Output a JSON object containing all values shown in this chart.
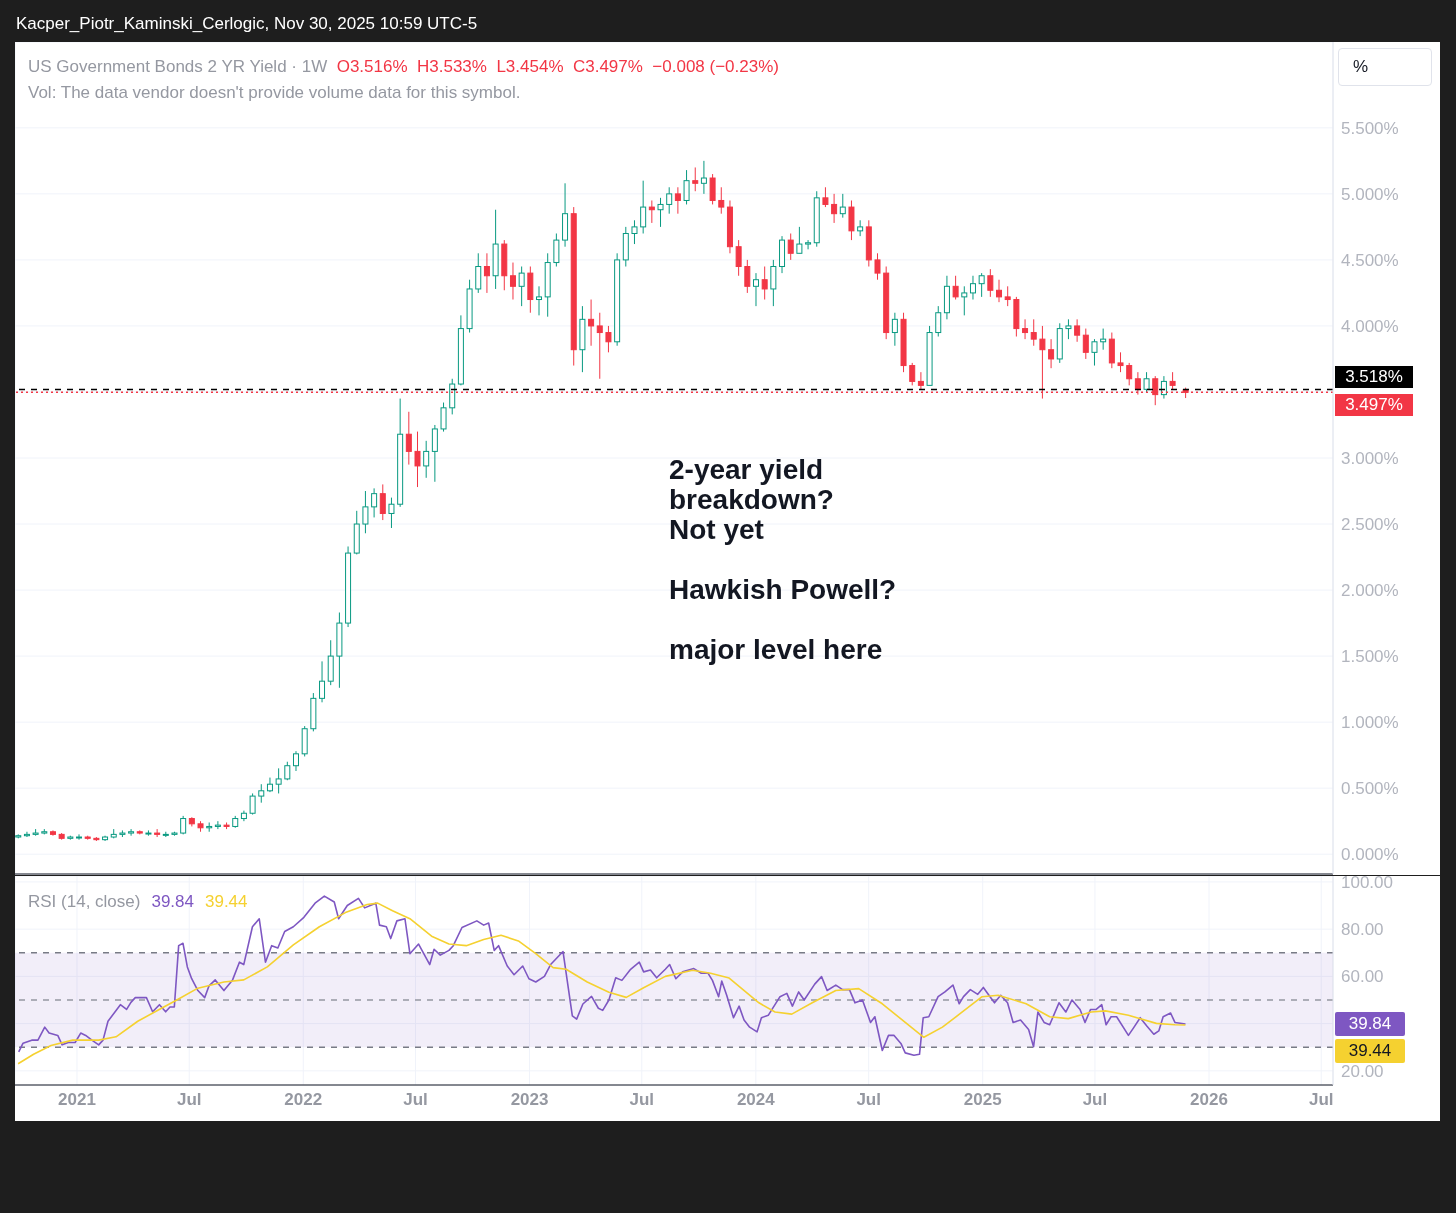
{
  "chart_data": [
    {
      "type": "candlestick",
      "title": "US Government Bonds 2 YR Yield · 1W",
      "subtitle": "Vol: The data vendor doesn't provide volume data for this symbol.",
      "annotations": [
        "O3.516%  H3.533%  L3.454%  C3.497%  −0.008 (−0.23%)",
        "2-year yield\nbreakdown?\nNot yet\n\nHawkish Powell?\n\nmajor level here",
        "%",
        "Kacper_Piotr_Kaminski_Cerlogic, Nov 30, 2025 10:59 UTC-5"
      ],
      "x": [
        "2020-09-28",
        "2020-10-12",
        "2020-10-26",
        "2020-11-09",
        "2020-11-23",
        "2020-12-07",
        "2020-12-21",
        "2021-01-04",
        "2021-01-18",
        "2021-02-01",
        "2021-02-15",
        "2021-03-01",
        "2021-03-15",
        "2021-03-29",
        "2021-04-12",
        "2021-04-26",
        "2021-05-10",
        "2021-05-24",
        "2021-06-07",
        "2021-06-21",
        "2021-07-05",
        "2021-07-19",
        "2021-08-02",
        "2021-08-16",
        "2021-08-30",
        "2021-09-13",
        "2021-09-27",
        "2021-10-11",
        "2021-10-25",
        "2021-11-08",
        "2021-11-22",
        "2021-12-06",
        "2021-12-20",
        "2022-01-03",
        "2022-01-17",
        "2022-01-31",
        "2022-02-14",
        "2022-02-28",
        "2022-03-14",
        "2022-03-28",
        "2022-04-11",
        "2022-04-25",
        "2022-05-09",
        "2022-05-23",
        "2022-06-06",
        "2022-06-20",
        "2022-07-04",
        "2022-07-18",
        "2022-08-01",
        "2022-08-15",
        "2022-08-29",
        "2022-09-12",
        "2022-09-26",
        "2022-10-10",
        "2022-10-24",
        "2022-11-07",
        "2022-11-21",
        "2022-12-05",
        "2022-12-19",
        "2023-01-02",
        "2023-01-16",
        "2023-01-30",
        "2023-02-13",
        "2023-02-27",
        "2023-03-13",
        "2023-03-27",
        "2023-04-10",
        "2023-04-24",
        "2023-05-08",
        "2023-05-22",
        "2023-06-05",
        "2023-06-19",
        "2023-07-03",
        "2023-07-17",
        "2023-07-31",
        "2023-08-14",
        "2023-08-28",
        "2023-09-11",
        "2023-09-25",
        "2023-10-09",
        "2023-10-23",
        "2023-11-06",
        "2023-11-20",
        "2023-12-04",
        "2023-12-18",
        "2024-01-01",
        "2024-01-15",
        "2024-01-29",
        "2024-02-12",
        "2024-02-26",
        "2024-03-11",
        "2024-03-25",
        "2024-04-08",
        "2024-04-22",
        "2024-05-06",
        "2024-05-20",
        "2024-06-03",
        "2024-06-17",
        "2024-07-01",
        "2024-07-15",
        "2024-07-29",
        "2024-08-12",
        "2024-08-26",
        "2024-09-09",
        "2024-09-23",
        "2024-10-07",
        "2024-10-21",
        "2024-11-04",
        "2024-11-18",
        "2024-12-02",
        "2024-12-16",
        "2024-12-30",
        "2025-01-13",
        "2025-01-27",
        "2025-02-10",
        "2025-02-24",
        "2025-03-10",
        "2025-03-24",
        "2025-04-07",
        "2025-04-21",
        "2025-05-05",
        "2025-05-19",
        "2025-06-02",
        "2025-06-16",
        "2025-06-30",
        "2025-07-14",
        "2025-07-28",
        "2025-08-11",
        "2025-08-25",
        "2025-09-08",
        "2025-09-22",
        "2025-10-06",
        "2025-10-20",
        "2025-11-03",
        "2025-11-24"
      ],
      "ohlc": [
        [
          0.13,
          0.15,
          0.12,
          0.14
        ],
        [
          0.14,
          0.17,
          0.13,
          0.15
        ],
        [
          0.15,
          0.19,
          0.14,
          0.16
        ],
        [
          0.16,
          0.19,
          0.15,
          0.17
        ],
        [
          0.17,
          0.18,
          0.14,
          0.15
        ],
        [
          0.15,
          0.16,
          0.11,
          0.12
        ],
        [
          0.12,
          0.14,
          0.11,
          0.13
        ],
        [
          0.13,
          0.15,
          0.11,
          0.13
        ],
        [
          0.13,
          0.14,
          0.11,
          0.12
        ],
        [
          0.12,
          0.13,
          0.1,
          0.11
        ],
        [
          0.11,
          0.14,
          0.1,
          0.13
        ],
        [
          0.13,
          0.19,
          0.12,
          0.15
        ],
        [
          0.15,
          0.18,
          0.13,
          0.16
        ],
        [
          0.16,
          0.19,
          0.14,
          0.17
        ],
        [
          0.17,
          0.18,
          0.15,
          0.16
        ],
        [
          0.16,
          0.18,
          0.14,
          0.16
        ],
        [
          0.16,
          0.19,
          0.13,
          0.15
        ],
        [
          0.15,
          0.17,
          0.13,
          0.15
        ],
        [
          0.15,
          0.17,
          0.14,
          0.16
        ],
        [
          0.16,
          0.29,
          0.15,
          0.27
        ],
        [
          0.27,
          0.28,
          0.21,
          0.23
        ],
        [
          0.23,
          0.25,
          0.17,
          0.2
        ],
        [
          0.2,
          0.24,
          0.17,
          0.21
        ],
        [
          0.21,
          0.25,
          0.19,
          0.22
        ],
        [
          0.22,
          0.24,
          0.19,
          0.21
        ],
        [
          0.21,
          0.29,
          0.2,
          0.27
        ],
        [
          0.27,
          0.33,
          0.25,
          0.31
        ],
        [
          0.31,
          0.46,
          0.3,
          0.44
        ],
        [
          0.44,
          0.53,
          0.39,
          0.48
        ],
        [
          0.48,
          0.58,
          0.47,
          0.53
        ],
        [
          0.53,
          0.65,
          0.46,
          0.57
        ],
        [
          0.57,
          0.7,
          0.56,
          0.67
        ],
        [
          0.67,
          0.78,
          0.63,
          0.76
        ],
        [
          0.76,
          0.97,
          0.74,
          0.95
        ],
        [
          0.95,
          1.22,
          0.93,
          1.18
        ],
        [
          1.18,
          1.46,
          1.15,
          1.31
        ],
        [
          1.31,
          1.62,
          1.28,
          1.5
        ],
        [
          1.5,
          1.83,
          1.26,
          1.75
        ],
        [
          1.75,
          2.33,
          1.72,
          2.28
        ],
        [
          2.28,
          2.6,
          2.27,
          2.5
        ],
        [
          2.5,
          2.75,
          2.43,
          2.63
        ],
        [
          2.63,
          2.77,
          2.55,
          2.73
        ],
        [
          2.73,
          2.8,
          2.53,
          2.58
        ],
        [
          2.58,
          2.7,
          2.47,
          2.65
        ],
        [
          2.65,
          3.45,
          2.63,
          3.18
        ],
        [
          3.18,
          3.35,
          2.95,
          3.05
        ],
        [
          3.05,
          3.2,
          2.78,
          2.94
        ],
        [
          2.94,
          3.13,
          2.85,
          3.05
        ],
        [
          3.05,
          3.25,
          2.82,
          3.22
        ],
        [
          3.22,
          3.42,
          3.2,
          3.38
        ],
        [
          3.38,
          3.6,
          3.33,
          3.56
        ],
        [
          3.56,
          4.08,
          3.55,
          3.98
        ],
        [
          3.98,
          4.35,
          3.95,
          4.28
        ],
        [
          4.28,
          4.55,
          4.25,
          4.45
        ],
        [
          4.45,
          4.55,
          4.25,
          4.38
        ],
        [
          4.38,
          4.88,
          4.28,
          4.62
        ],
        [
          4.62,
          4.65,
          4.27,
          4.38
        ],
        [
          4.38,
          4.48,
          4.2,
          4.3
        ],
        [
          4.3,
          4.45,
          4.15,
          4.4
        ],
        [
          4.4,
          4.45,
          4.1,
          4.2
        ],
        [
          4.2,
          4.3,
          4.08,
          4.22
        ],
        [
          4.22,
          4.55,
          4.07,
          4.48
        ],
        [
          4.48,
          4.7,
          4.45,
          4.65
        ],
        [
          4.65,
          5.08,
          4.6,
          4.85
        ],
        [
          4.85,
          4.9,
          3.7,
          3.82
        ],
        [
          3.82,
          4.15,
          3.65,
          4.05
        ],
        [
          4.05,
          4.2,
          3.85,
          4.0
        ],
        [
          4.0,
          4.1,
          3.6,
          3.95
        ],
        [
          3.95,
          4.0,
          3.8,
          3.88
        ],
        [
          3.88,
          4.55,
          3.85,
          4.5
        ],
        [
          4.5,
          4.75,
          4.45,
          4.7
        ],
        [
          4.7,
          4.8,
          4.62,
          4.75
        ],
        [
          4.75,
          5.1,
          4.7,
          4.9
        ],
        [
          4.9,
          4.95,
          4.78,
          4.88
        ],
        [
          4.88,
          4.97,
          4.75,
          4.92
        ],
        [
          4.92,
          5.05,
          4.85,
          5.0
        ],
        [
          5.0,
          5.05,
          4.85,
          4.95
        ],
        [
          4.95,
          5.18,
          4.92,
          5.1
        ],
        [
          5.1,
          5.2,
          5.02,
          5.08
        ],
        [
          5.08,
          5.25,
          5.0,
          5.12
        ],
        [
          5.12,
          5.15,
          4.92,
          4.95
        ],
        [
          4.95,
          5.05,
          4.85,
          4.9
        ],
        [
          4.9,
          4.95,
          4.55,
          4.6
        ],
        [
          4.6,
          4.65,
          4.38,
          4.45
        ],
        [
          4.45,
          4.5,
          4.25,
          4.3
        ],
        [
          4.3,
          4.4,
          4.15,
          4.35
        ],
        [
          4.35,
          4.45,
          4.2,
          4.28
        ],
        [
          4.28,
          4.5,
          4.15,
          4.45
        ],
        [
          4.45,
          4.68,
          4.4,
          4.65
        ],
        [
          4.65,
          4.7,
          4.5,
          4.55
        ],
        [
          4.55,
          4.75,
          4.55,
          4.62
        ],
        [
          4.62,
          4.65,
          4.58,
          4.63
        ],
        [
          4.63,
          5.02,
          4.6,
          4.97
        ],
        [
          4.97,
          5.05,
          4.9,
          4.92
        ],
        [
          4.92,
          5.0,
          4.78,
          4.85
        ],
        [
          4.85,
          5.0,
          4.82,
          4.9
        ],
        [
          4.9,
          4.95,
          4.65,
          4.72
        ],
        [
          4.72,
          4.8,
          4.68,
          4.75
        ],
        [
          4.75,
          4.8,
          4.45,
          4.5
        ],
        [
          4.5,
          4.55,
          4.35,
          4.4
        ],
        [
          4.4,
          4.45,
          3.9,
          3.95
        ],
        [
          3.95,
          4.1,
          3.85,
          4.05
        ],
        [
          4.05,
          4.1,
          3.65,
          3.7
        ],
        [
          3.7,
          3.72,
          3.55,
          3.58
        ],
        [
          3.58,
          3.65,
          3.52,
          3.55
        ],
        [
          3.55,
          4.0,
          3.55,
          3.95
        ],
        [
          3.95,
          4.15,
          3.92,
          4.1
        ],
        [
          4.1,
          4.38,
          4.05,
          4.3
        ],
        [
          4.3,
          4.38,
          4.2,
          4.22
        ],
        [
          4.22,
          4.3,
          4.08,
          4.25
        ],
        [
          4.25,
          4.38,
          4.2,
          4.32
        ],
        [
          4.32,
          4.4,
          4.22,
          4.38
        ],
        [
          4.38,
          4.43,
          4.22,
          4.27
        ],
        [
          4.27,
          4.35,
          4.18,
          4.22
        ],
        [
          4.22,
          4.3,
          4.15,
          4.2
        ],
        [
          4.2,
          4.22,
          3.92,
          3.98
        ],
        [
          3.98,
          4.05,
          3.9,
          3.95
        ],
        [
          3.95,
          4.05,
          3.85,
          3.9
        ],
        [
          3.9,
          4.0,
          3.45,
          3.82
        ],
        [
          3.82,
          3.9,
          3.68,
          3.75
        ],
        [
          3.75,
          4.02,
          3.72,
          3.98
        ],
        [
          3.98,
          4.05,
          3.9,
          4.0
        ],
        [
          4.0,
          4.05,
          3.88,
          3.93
        ],
        [
          3.93,
          3.98,
          3.75,
          3.8
        ],
        [
          3.8,
          3.9,
          3.7,
          3.88
        ],
        [
          3.88,
          3.98,
          3.82,
          3.9
        ],
        [
          3.9,
          3.95,
          3.68,
          3.72
        ],
        [
          3.72,
          3.8,
          3.65,
          3.7
        ],
        [
          3.7,
          3.72,
          3.55,
          3.6
        ],
        [
          3.6,
          3.65,
          3.48,
          3.52
        ],
        [
          3.52,
          3.65,
          3.5,
          3.6
        ],
        [
          3.6,
          3.62,
          3.4,
          3.48
        ],
        [
          3.48,
          3.62,
          3.45,
          3.58
        ],
        [
          3.58,
          3.65,
          3.52,
          3.55
        ],
        [
          3.516,
          3.533,
          3.454,
          3.497
        ]
      ],
      "colors": [
        "#089981",
        "#089981",
        "#089981",
        "#089981",
        "#f23645",
        "#f23645",
        "#089981",
        "#089981",
        "#f23645",
        "#f23645",
        "#089981",
        "#089981",
        "#089981",
        "#089981",
        "#f23645",
        "#089981",
        "#f23645",
        "#089981",
        "#089981",
        "#089981",
        "#f23645",
        "#f23645",
        "#089981",
        "#089981",
        "#f23645",
        "#089981",
        "#089981",
        "#089981",
        "#089981",
        "#089981",
        "#089981",
        "#089981",
        "#089981",
        "#089981",
        "#089981",
        "#089981",
        "#089981",
        "#089981",
        "#089981",
        "#089981",
        "#089981",
        "#089981",
        "#f23645",
        "#089981",
        "#089981",
        "#f23645",
        "#f23645",
        "#089981",
        "#089981",
        "#089981",
        "#089981",
        "#089981",
        "#089981",
        "#089981",
        "#f23645",
        "#089981",
        "#f23645",
        "#f23645",
        "#089981",
        "#f23645",
        "#089981",
        "#089981",
        "#089981",
        "#089981",
        "#f23645",
        "#089981",
        "#f23645",
        "#f23645",
        "#f23645",
        "#089981",
        "#089981",
        "#089981",
        "#089981",
        "#f23645",
        "#089981",
        "#089981",
        "#f23645",
        "#089981",
        "#f23645",
        "#089981",
        "#f23645",
        "#f23645",
        "#f23645",
        "#f23645",
        "#f23645",
        "#089981",
        "#f23645",
        "#089981",
        "#089981",
        "#f23645",
        "#089981",
        "#089981",
        "#089981",
        "#f23645",
        "#f23645",
        "#089981",
        "#f23645",
        "#089981",
        "#f23645",
        "#f23645",
        "#f23645",
        "#089981",
        "#f23645",
        "#f23645",
        "#f23645",
        "#089981",
        "#089981",
        "#089981",
        "#f23645",
        "#089981",
        "#089981",
        "#089981",
        "#f23645",
        "#f23645",
        "#f23645",
        "#f23645",
        "#f23645",
        "#f23645",
        "#f23645",
        "#f23645",
        "#089981",
        "#089981",
        "#f23645",
        "#f23645",
        "#089981",
        "#089981",
        "#f23645",
        "#f23645",
        "#f23645",
        "#f23645",
        "#089981",
        "#f23645",
        "#089981",
        "#f23645",
        "#f23645"
      ],
      "xlim": [
        "2020-09-23",
        "2026-07-20"
      ],
      "xticks": [
        {
          "value": "2021-01-01",
          "label": null
        },
        {
          "value": "2021-07-01",
          "label": null
        },
        {
          "value": "2022-01-01",
          "label": null
        },
        {
          "value": "2022-07-01",
          "label": null
        },
        {
          "value": "2023-01-01",
          "label": null
        },
        {
          "value": "2023-07-01",
          "label": null
        },
        {
          "value": "2024-01-01",
          "label": null
        },
        {
          "value": "2024-07-01",
          "label": null
        },
        {
          "value": "2025-01-01",
          "label": null
        },
        {
          "value": "2025-07-01",
          "label": null
        },
        {
          "value": "2026-01-01",
          "label": null
        },
        {
          "value": "2026-07-01",
          "label": null
        }
      ],
      "ylim": [
        -0.15,
        6.15
      ],
      "yticks": [
        {
          "value": 0,
          "label": "0.000%"
        },
        {
          "value": 0.5,
          "label": "0.500%"
        },
        {
          "value": 1,
          "label": "1.000%"
        },
        {
          "value": 1.5,
          "label": "1.500%"
        },
        {
          "value": 2,
          "label": "2.000%"
        },
        {
          "value": 2.5,
          "label": "2.500%"
        },
        {
          "value": 3,
          "label": "3.000%"
        },
        {
          "value": 3.5,
          "label": null
        },
        {
          "value": 4,
          "label": "4.000%"
        },
        {
          "value": 4.5,
          "label": "4.500%"
        },
        {
          "value": 5,
          "label": "5.000%"
        },
        {
          "value": 5.5,
          "label": "5.500%"
        }
      ],
      "ref_lines": [
        {
          "axis": "y",
          "value": 3.518,
          "label": "3.518%",
          "color": "#000000",
          "line_style": "dashed"
        },
        {
          "axis": "y",
          "value": 3.497,
          "label": "3.497%",
          "color": "#f23645",
          "line_style": "dotted"
        }
      ],
      "grid": true,
      "tick_labels": "y"
    },
    {
      "type": "line",
      "title": "RSI (14, close)",
      "annotations": [
        "39.84",
        "39.44"
      ],
      "series": [
        {
          "color": "#7e57c2",
          "x": [
            "2020-09-29",
            "2020-10-06",
            "2020-10-20",
            "2020-10-30",
            "2020-11-10",
            "2020-11-17",
            "2020-12-01",
            "2020-12-08",
            "2020-12-18",
            "2020-12-29",
            "2021-01-07",
            "2021-01-15",
            "2021-01-25",
            "2021-02-05",
            "2021-02-12",
            "2021-02-20",
            "2021-03-12",
            "2021-03-22",
            "2021-03-29",
            "2021-04-05",
            "2021-04-23",
            "2021-05-03",
            "2021-05-14",
            "2021-05-24",
            "2021-05-31",
            "2021-06-07",
            "2021-06-14",
            "2021-06-21",
            "2021-06-28",
            "2021-07-05",
            "2021-07-15",
            "2021-07-26",
            "2021-08-02",
            "2021-08-12",
            "2021-08-26",
            "2021-09-09",
            "2021-09-20",
            "2021-09-27",
            "2021-10-11",
            "2021-10-22",
            "2021-11-01",
            "2021-11-11",
            "2021-11-21",
            "2021-12-02",
            "2021-12-16",
            "2022-01-02",
            "2022-01-20",
            "2022-02-04",
            "2022-02-20",
            "2022-02-27",
            "2022-03-13",
            "2022-03-31",
            "2022-04-10",
            "2022-04-28",
            "2022-05-04",
            "2022-05-15",
            "2022-05-22",
            "2022-06-01",
            "2022-06-14",
            "2022-06-22",
            "2022-07-06",
            "2022-07-24",
            "2022-07-31",
            "2022-08-10",
            "2022-08-24",
            "2022-08-31",
            "2022-09-14",
            "2022-10-08",
            "2022-10-19",
            "2022-10-27",
            "2022-11-05",
            "2022-11-12",
            "2022-11-26",
            "2022-12-07",
            "2022-12-21",
            "2022-12-31",
            "2023-01-11",
            "2023-01-25",
            "2023-02-04",
            "2023-02-24",
            "2023-03-11",
            "2023-03-18",
            "2023-03-28",
            "2023-04-11",
            "2023-04-22",
            "2023-04-29",
            "2023-05-09",
            "2023-05-20",
            "2023-05-30",
            "2023-06-13",
            "2023-06-27",
            "2023-07-04",
            "2023-07-15",
            "2023-07-25",
            "2023-08-08",
            "2023-08-15",
            "2023-08-25",
            "2023-09-05",
            "2023-09-23",
            "2023-10-05",
            "2023-10-16",
            "2023-10-23",
            "2023-11-02",
            "2023-11-07",
            "2023-11-15",
            "2023-11-26",
            "2023-12-05",
            "2023-12-13",
            "2023-12-22",
            "2024-01-03",
            "2024-01-10",
            "2024-01-21",
            "2024-02-09",
            "2024-02-20",
            "2024-02-29",
            "2024-03-10",
            "2024-03-19",
            "2024-04-05",
            "2024-04-16",
            "2024-04-25",
            "2024-05-09",
            "2024-05-20",
            "2024-05-31",
            "2024-06-09",
            "2024-06-21",
            "2024-07-04",
            "2024-07-11",
            "2024-07-23",
            "2024-08-02",
            "2024-08-11",
            "2024-08-22",
            "2024-08-29",
            "2024-09-12",
            "2024-09-21",
            "2024-09-27",
            "2024-10-06",
            "2024-10-21",
            "2024-11-01",
            "2024-11-14",
            "2024-11-24",
            "2024-12-01",
            "2024-12-12",
            "2024-12-24",
            "2025-01-02",
            "2025-01-11",
            "2025-01-20",
            "2025-01-30",
            "2025-02-10",
            "2025-02-19",
            "2025-03-03",
            "2025-03-16",
            "2025-03-24",
            "2025-03-31",
            "2025-04-10",
            "2025-04-19",
            "2025-05-04",
            "2025-05-15",
            "2025-05-25",
            "2025-06-07",
            "2025-06-15",
            "2025-06-24",
            "2025-07-03",
            "2025-07-12",
            "2025-07-19",
            "2025-07-27",
            "2025-08-05",
            "2025-08-24",
            "2025-09-01",
            "2025-09-12",
            "2025-09-23",
            "2025-10-04",
            "2025-10-12",
            "2025-10-19",
            "2025-10-31",
            "2025-11-07",
            "2025-11-24"
          ],
          "values": [
            28,
            31.7,
            33,
            33,
            38.5,
            36,
            35,
            31,
            32,
            32,
            36,
            35,
            33,
            31,
            33,
            41,
            48,
            46,
            49,
            51,
            51,
            45,
            48,
            45,
            47,
            47,
            73,
            74,
            64,
            59,
            54,
            51,
            56,
            58.5,
            54,
            58.5,
            66,
            65,
            81,
            84.4,
            66,
            73,
            72,
            79,
            81,
            85,
            91,
            94,
            91.5,
            84.4,
            90,
            93,
            89,
            91,
            81.7,
            81,
            76,
            83.5,
            84.4,
            69.6,
            73.7,
            65,
            71.5,
            69,
            71,
            73,
            80.7,
            83.5,
            81.7,
            82.6,
            71,
            73,
            64.4,
            60.7,
            64.4,
            59,
            57.6,
            60,
            65,
            70.5,
            43.3,
            41.9,
            48.3,
            51.5,
            46.5,
            45.6,
            50,
            59.4,
            58.3,
            63,
            66,
            61.9,
            62.7,
            59.4,
            63,
            65,
            59,
            61.9,
            63.3,
            61.3,
            61.3,
            58.3,
            51.4,
            58,
            52,
            42.5,
            47.4,
            41.5,
            38.5,
            36.5,
            42.5,
            43.5,
            51.4,
            52.8,
            47.4,
            53.4,
            50,
            56.7,
            59.9,
            54,
            56.3,
            54.4,
            54.4,
            48.8,
            50,
            40.5,
            42.9,
            28.6,
            35,
            35,
            31.6,
            27.6,
            26.6,
            27,
            42.5,
            42.9,
            51.4,
            53.4,
            56.3,
            48.4,
            51.4,
            54.4,
            52.4,
            55.3,
            52,
            48.8,
            52,
            48.8,
            40.5,
            41.5,
            37.5,
            30.2,
            44.9,
            40.5,
            39.5,
            48.8,
            44.9,
            50,
            46,
            40.5,
            46,
            46,
            48,
            39.5,
            42.9,
            42.9,
            35,
            38.1,
            42.5,
            38.9,
            35.5,
            36.9,
            42.9,
            44.5,
            40.5,
            39.8
          ]
        },
        {
          "color": "#f5d130",
          "x": [
            "2020-09-28",
            "2020-10-23",
            "2020-11-20",
            "2020-12-25",
            "2021-02-05",
            "2021-03-05",
            "2021-04-09",
            "2021-05-21",
            "2021-06-11",
            "2021-07-15",
            "2021-08-26",
            "2021-09-27",
            "2021-11-04",
            "2021-12-16",
            "2022-01-27",
            "2022-03-10",
            "2022-04-14",
            "2022-05-01",
            "2022-05-25",
            "2022-06-22",
            "2022-07-27",
            "2022-08-24",
            "2022-09-21",
            "2022-10-19",
            "2022-11-16",
            "2022-12-14",
            "2023-01-11",
            "2023-02-08",
            "2023-03-01",
            "2023-04-04",
            "2023-05-09",
            "2023-06-06",
            "2023-07-04",
            "2023-08-08",
            "2023-09-21",
            "2023-10-20",
            "2023-11-19",
            "2024-01-06",
            "2024-02-01",
            "2024-02-28",
            "2024-04-01",
            "2024-05-09",
            "2024-06-15",
            "2024-07-23",
            "2024-08-29",
            "2024-09-28",
            "2024-10-28",
            "2024-11-27",
            "2024-12-31",
            "2025-01-26",
            "2025-03-12",
            "2025-04-19",
            "2025-05-19",
            "2025-06-25",
            "2025-07-18",
            "2025-08-24",
            "2025-10-08",
            "2025-11-07",
            "2025-11-24"
          ],
          "values": [
            23,
            27,
            30.7,
            33,
            33,
            34.4,
            41,
            47,
            50,
            55,
            57.6,
            58.5,
            64,
            73.3,
            81,
            87,
            90.4,
            91,
            87.8,
            84.4,
            77,
            73.7,
            73,
            75.6,
            77.4,
            75,
            69.6,
            63.7,
            63,
            57.6,
            53.3,
            51.1,
            55.2,
            60,
            62.6,
            61.3,
            59.3,
            48.8,
            44.9,
            44,
            48.8,
            54,
            54.8,
            48.4,
            40.5,
            34.2,
            38.5,
            44.5,
            51.4,
            52,
            48.4,
            42.9,
            42.1,
            44.9,
            45.4,
            43.5,
            40.1,
            39.5,
            39.4
          ]
        }
      ],
      "xlim": [
        "2020-09-23",
        "2026-07-20"
      ],
      "xticks": [
        {
          "value": "2021-01-01",
          "label": "2021"
        },
        {
          "value": "2021-07-01",
          "label": "Jul"
        },
        {
          "value": "2022-01-01",
          "label": "2022"
        },
        {
          "value": "2022-07-01",
          "label": "Jul"
        },
        {
          "value": "2023-01-01",
          "label": "2023"
        },
        {
          "value": "2023-07-01",
          "label": "Jul"
        },
        {
          "value": "2024-01-01",
          "label": "2024"
        },
        {
          "value": "2024-07-01",
          "label": "Jul"
        },
        {
          "value": "2025-01-01",
          "label": "2025"
        },
        {
          "value": "2025-07-01",
          "label": "Jul"
        },
        {
          "value": "2026-01-01",
          "label": "2026"
        },
        {
          "value": "2026-07-01",
          "label": "Jul"
        }
      ],
      "ylim": [
        14,
        102.5
      ],
      "yticks": [
        {
          "value": 20,
          "label": "20.00"
        },
        {
          "value": 40,
          "label": null
        },
        {
          "value": 60,
          "label": "60.00"
        },
        {
          "value": 80,
          "label": "80.00"
        },
        {
          "value": 100,
          "label": "100.00"
        }
      ],
      "ref_lines": [
        {
          "axis": "y",
          "value": 70,
          "color": "#787b86",
          "line_style": "dashed"
        },
        {
          "axis": "y",
          "value": 50,
          "color": "#9598a1",
          "line_style": "dashed"
        },
        {
          "axis": "y",
          "value": 30,
          "color": "#787b86",
          "line_style": "dashed"
        }
      ],
      "bands": [
        {
          "axis": "y",
          "from": 30,
          "to": 70,
          "color": "#7e57c2"
        }
      ],
      "grid": true
    }
  ]
}
